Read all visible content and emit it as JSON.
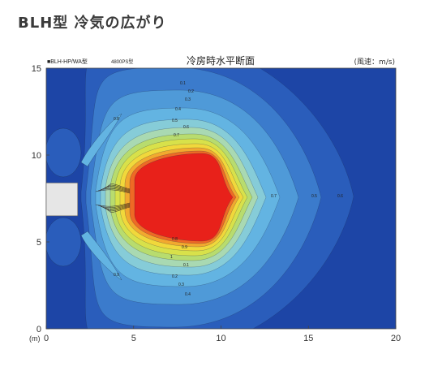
{
  "page": {
    "title": "BLH型 冷気の広がり"
  },
  "chart_data": {
    "type": "heatmap",
    "title": "冷房時水平断面",
    "model_label": "■BLH-HP/WA型",
    "model_sublabel": "4800PS型",
    "unit_label": "(風速：m/s)",
    "x_unit_label": "(m)",
    "xlim": [
      0,
      20
    ],
    "ylim": [
      0,
      15
    ],
    "x_ticks": [
      "0",
      "5",
      "10",
      "15",
      "20"
    ],
    "y_ticks": [
      "0",
      "5",
      "10",
      "15"
    ],
    "contour_levels": [
      "0.1",
      "0.2",
      "0.3",
      "0.4",
      "0.5",
      "0.6",
      "0.7",
      "0.8",
      "0.9",
      "1"
    ],
    "colors": {
      "background": "#1d45a6",
      "red": "#e8211a"
    },
    "unit_box": {
      "x_from": 0,
      "x_to": 1.8,
      "y_from": 6.5,
      "y_to": 8.4
    }
  }
}
